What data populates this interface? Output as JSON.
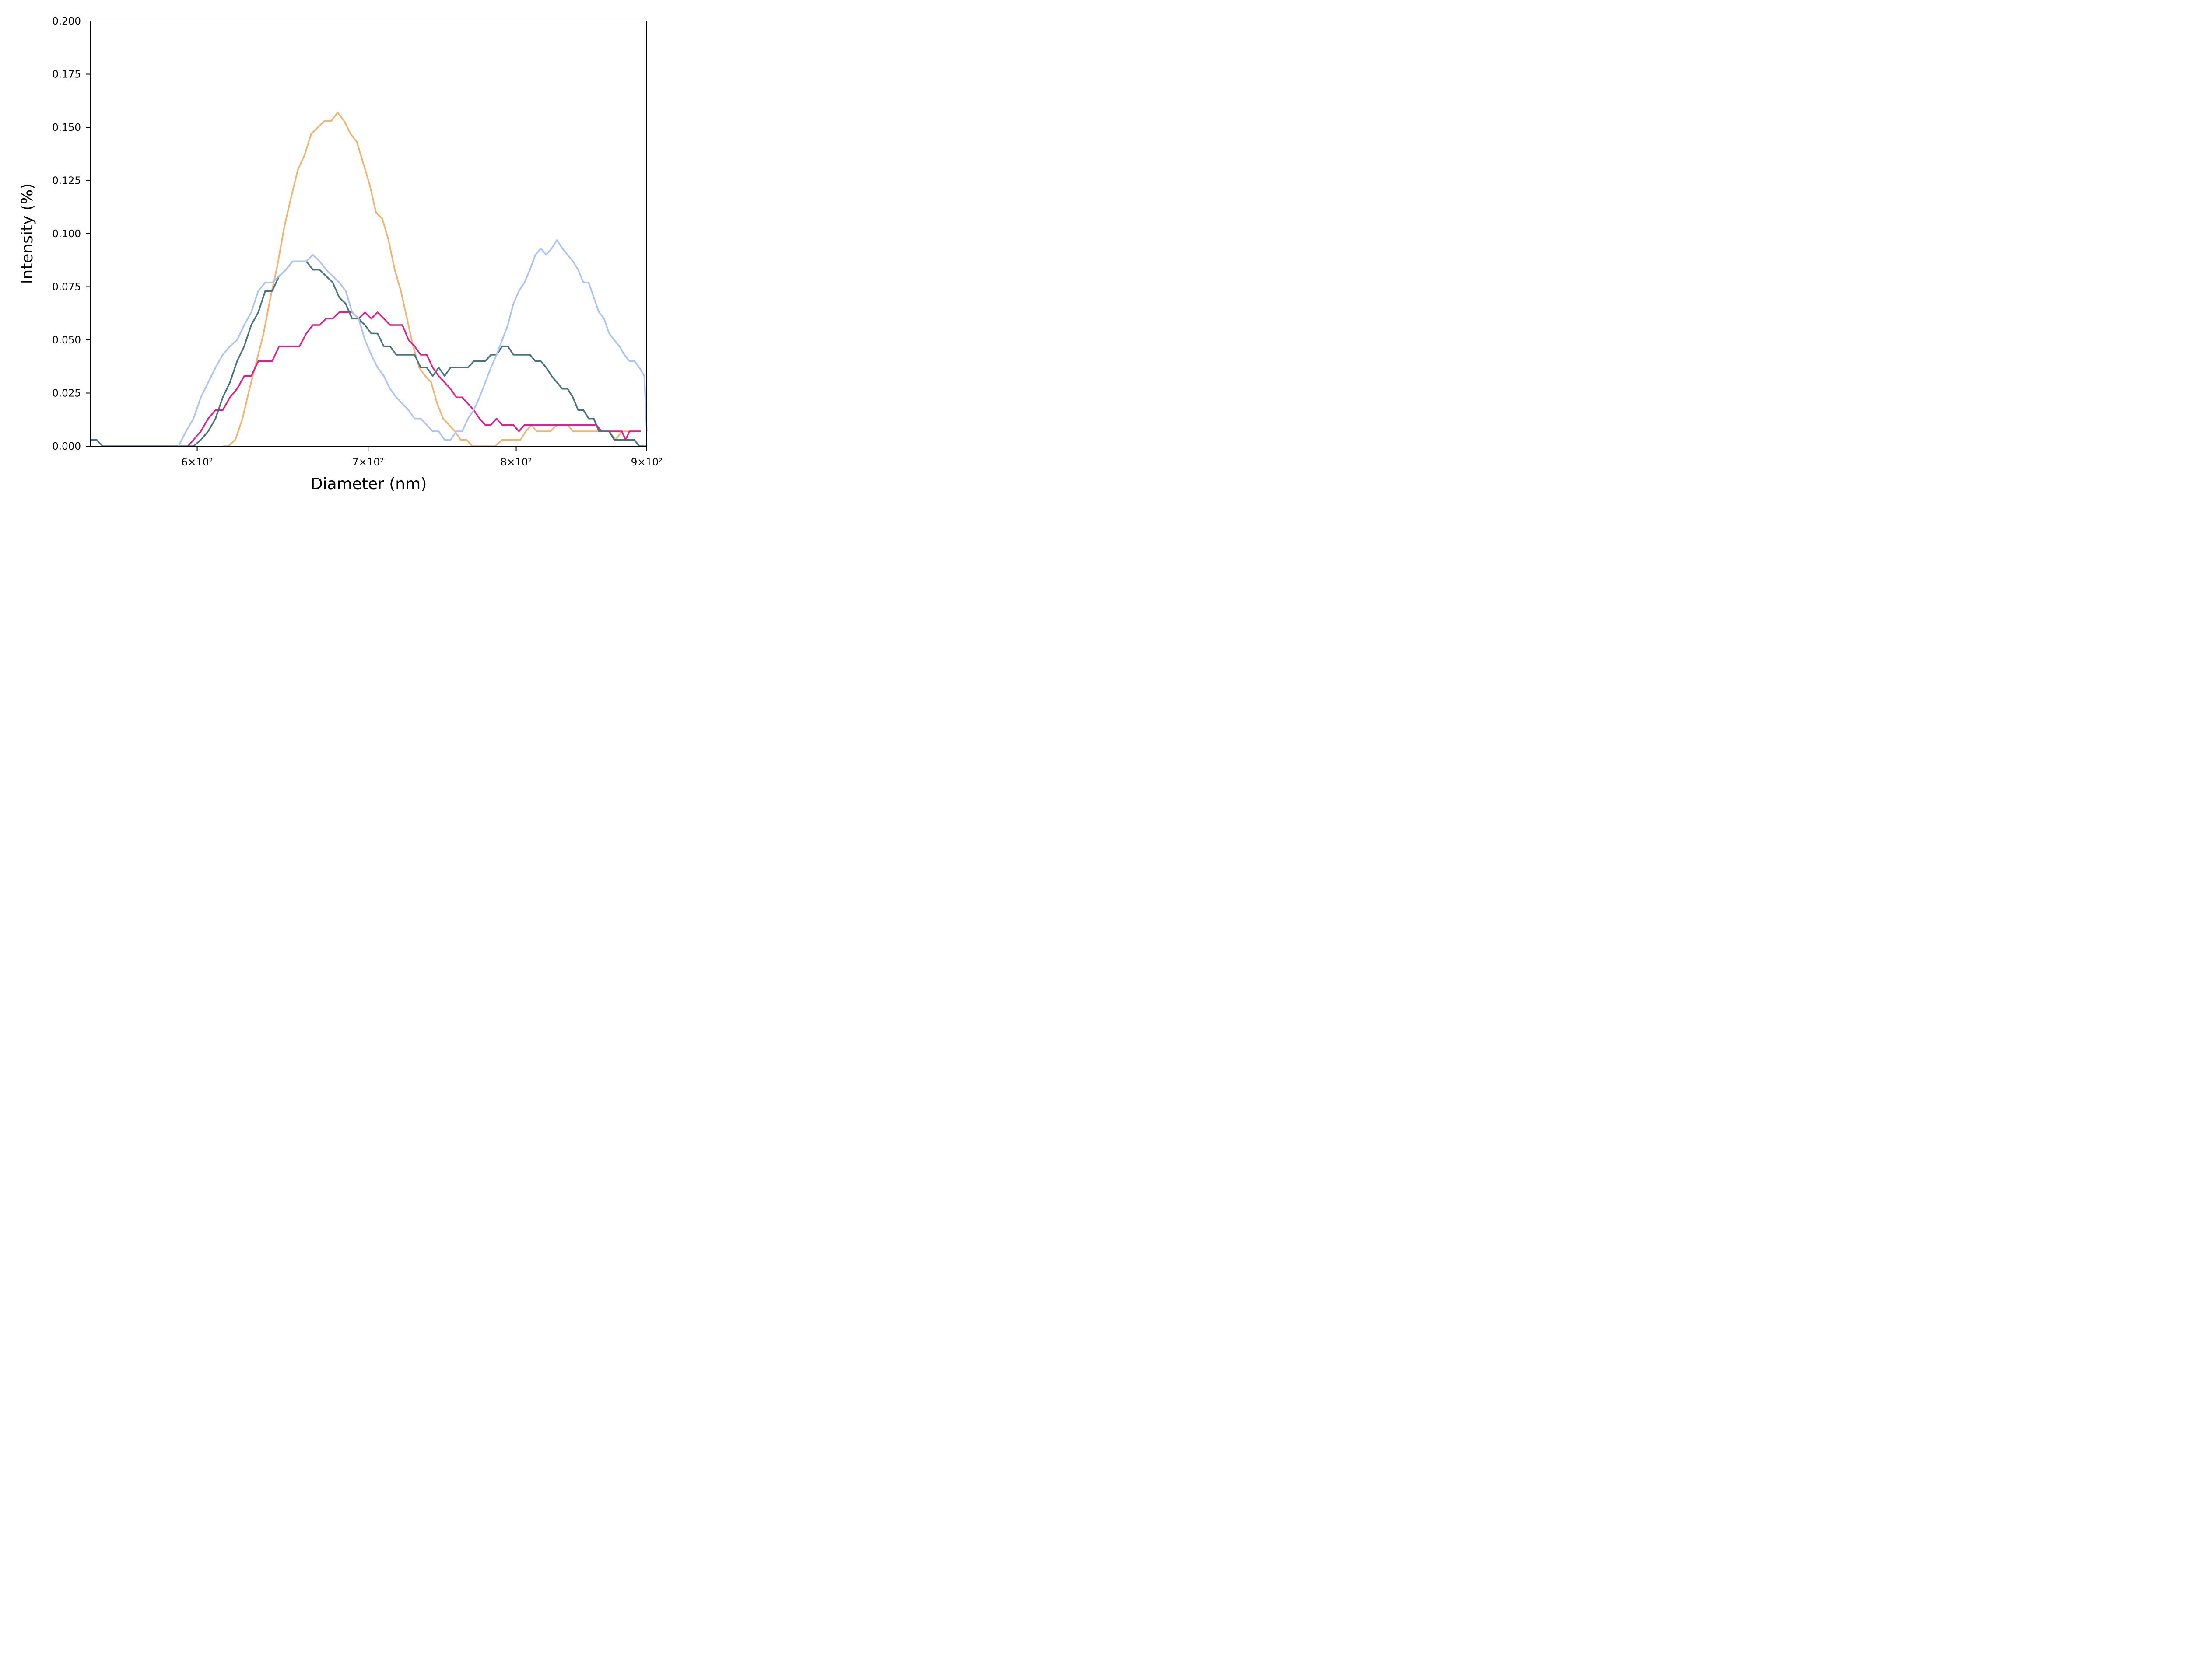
{
  "chart_data": {
    "type": "line",
    "xlabel": "Diameter (nm)",
    "ylabel": "Intensity (%)",
    "x_scale": "log",
    "xlim": [
      545,
      900
    ],
    "ylim": [
      0,
      0.2
    ],
    "grid": false,
    "legend": "none",
    "x_ticks": [
      {
        "value": 600,
        "label": "6×10²"
      },
      {
        "value": 700,
        "label": "7×10²"
      },
      {
        "value": 800,
        "label": "8×10²"
      },
      {
        "value": 900,
        "label": "9×10²"
      }
    ],
    "y_ticks": [
      {
        "value": 0,
        "label": "0.000"
      },
      {
        "value": 0.025,
        "label": "0.025"
      },
      {
        "value": 0.05,
        "label": "0.050"
      },
      {
        "value": 0.075,
        "label": "0.075"
      },
      {
        "value": 0.1,
        "label": "0.100"
      },
      {
        "value": 0.125,
        "label": "0.125"
      },
      {
        "value": 0.15,
        "label": "0.150"
      },
      {
        "value": 0.175,
        "label": "0.175"
      },
      {
        "value": 0.2,
        "label": "0.200"
      }
    ],
    "series": [
      {
        "color": "#f0b470",
        "points": [
          [
            614,
            0
          ],
          [
            617,
            0
          ],
          [
            621,
            0.003
          ],
          [
            625,
            0.013
          ],
          [
            629,
            0.027
          ],
          [
            633,
            0.04
          ],
          [
            637,
            0.053
          ],
          [
            641,
            0.07
          ],
          [
            645,
            0.085
          ],
          [
            649,
            0.103
          ],
          [
            653,
            0.117
          ],
          [
            657,
            0.13
          ],
          [
            661,
            0.137
          ],
          [
            665,
            0.147
          ],
          [
            669,
            0.15
          ],
          [
            673,
            0.153
          ],
          [
            677,
            0.153
          ],
          [
            681,
            0.157
          ],
          [
            685,
            0.153
          ],
          [
            689,
            0.147
          ],
          [
            693,
            0.143
          ],
          [
            697,
            0.133
          ],
          [
            701,
            0.123
          ],
          [
            705,
            0.11
          ],
          [
            709,
            0.107
          ],
          [
            713,
            0.097
          ],
          [
            717,
            0.083
          ],
          [
            721,
            0.073
          ],
          [
            725,
            0.06
          ],
          [
            729,
            0.047
          ],
          [
            733,
            0.037
          ],
          [
            737,
            0.033
          ],
          [
            741,
            0.03
          ],
          [
            745,
            0.02
          ],
          [
            749,
            0.013
          ],
          [
            753,
            0.01
          ],
          [
            757,
            0.007
          ],
          [
            761,
            0.003
          ],
          [
            765,
            0.003
          ],
          [
            769,
            0
          ],
          [
            785,
            0
          ],
          [
            790,
            0.003
          ],
          [
            800,
            0.003
          ],
          [
            803,
            0.003
          ],
          [
            807,
            0.007
          ],
          [
            811,
            0.01
          ],
          [
            815,
            0.007
          ],
          [
            825,
            0.007
          ],
          [
            830,
            0.01
          ],
          [
            838,
            0.01
          ],
          [
            842,
            0.007
          ],
          [
            860,
            0.007
          ],
          [
            863,
            0.007
          ],
          [
            870,
            0.007
          ],
          [
            875,
            0.003
          ],
          [
            880,
            0.007
          ],
          [
            890,
            0.007
          ],
          [
            895,
            0.007
          ]
        ]
      },
      {
        "color": "#e0208e",
        "points": [
          [
            595,
            0
          ],
          [
            598,
            0.003
          ],
          [
            602,
            0.007
          ],
          [
            606,
            0.013
          ],
          [
            610,
            0.017
          ],
          [
            614,
            0.017
          ],
          [
            618,
            0.023
          ],
          [
            622,
            0.027
          ],
          [
            626,
            0.033
          ],
          [
            630,
            0.033
          ],
          [
            634,
            0.04
          ],
          [
            638,
            0.04
          ],
          [
            642,
            0.04
          ],
          [
            646,
            0.047
          ],
          [
            650,
            0.047
          ],
          [
            654,
            0.047
          ],
          [
            658,
            0.047
          ],
          [
            662,
            0.053
          ],
          [
            666,
            0.057
          ],
          [
            670,
            0.057
          ],
          [
            674,
            0.06
          ],
          [
            678,
            0.06
          ],
          [
            682,
            0.063
          ],
          [
            686,
            0.063
          ],
          [
            690,
            0.063
          ],
          [
            694,
            0.06
          ],
          [
            698,
            0.063
          ],
          [
            702,
            0.06
          ],
          [
            706,
            0.063
          ],
          [
            710,
            0.06
          ],
          [
            714,
            0.057
          ],
          [
            718,
            0.057
          ],
          [
            722,
            0.057
          ],
          [
            726,
            0.05
          ],
          [
            730,
            0.047
          ],
          [
            734,
            0.043
          ],
          [
            738,
            0.043
          ],
          [
            742,
            0.037
          ],
          [
            746,
            0.033
          ],
          [
            750,
            0.03
          ],
          [
            754,
            0.027
          ],
          [
            758,
            0.023
          ],
          [
            762,
            0.023
          ],
          [
            766,
            0.02
          ],
          [
            770,
            0.017
          ],
          [
            774,
            0.013
          ],
          [
            778,
            0.01
          ],
          [
            782,
            0.01
          ],
          [
            786,
            0.013
          ],
          [
            790,
            0.01
          ],
          [
            794,
            0.01
          ],
          [
            798,
            0.01
          ],
          [
            802,
            0.007
          ],
          [
            806,
            0.01
          ],
          [
            860,
            0.01
          ],
          [
            864,
            0.007
          ],
          [
            880,
            0.007
          ],
          [
            883,
            0.003
          ],
          [
            886,
            0.007
          ],
          [
            895,
            0.007
          ]
        ]
      },
      {
        "color": "#4a7380",
        "points": [
          [
            545,
            0.003
          ],
          [
            548,
            0.003
          ],
          [
            551,
            0
          ],
          [
            598,
            0
          ],
          [
            602,
            0.003
          ],
          [
            606,
            0.007
          ],
          [
            610,
            0.013
          ],
          [
            614,
            0.023
          ],
          [
            618,
            0.03
          ],
          [
            622,
            0.04
          ],
          [
            626,
            0.047
          ],
          [
            630,
            0.057
          ],
          [
            634,
            0.063
          ],
          [
            638,
            0.073
          ],
          [
            642,
            0.073
          ],
          [
            646,
            0.08
          ],
          [
            650,
            0.083
          ],
          [
            654,
            0.087
          ],
          [
            658,
            0.087
          ],
          [
            662,
            0.087
          ],
          [
            666,
            0.083
          ],
          [
            670,
            0.083
          ],
          [
            674,
            0.08
          ],
          [
            678,
            0.077
          ],
          [
            682,
            0.07
          ],
          [
            686,
            0.067
          ],
          [
            690,
            0.06
          ],
          [
            694,
            0.06
          ],
          [
            698,
            0.057
          ],
          [
            702,
            0.053
          ],
          [
            706,
            0.053
          ],
          [
            710,
            0.047
          ],
          [
            714,
            0.047
          ],
          [
            718,
            0.043
          ],
          [
            722,
            0.043
          ],
          [
            726,
            0.043
          ],
          [
            730,
            0.043
          ],
          [
            734,
            0.037
          ],
          [
            738,
            0.037
          ],
          [
            742,
            0.033
          ],
          [
            746,
            0.037
          ],
          [
            750,
            0.033
          ],
          [
            754,
            0.037
          ],
          [
            758,
            0.037
          ],
          [
            762,
            0.037
          ],
          [
            766,
            0.037
          ],
          [
            770,
            0.04
          ],
          [
            774,
            0.04
          ],
          [
            778,
            0.04
          ],
          [
            782,
            0.043
          ],
          [
            786,
            0.043
          ],
          [
            790,
            0.047
          ],
          [
            794,
            0.047
          ],
          [
            798,
            0.043
          ],
          [
            802,
            0.043
          ],
          [
            806,
            0.043
          ],
          [
            810,
            0.043
          ],
          [
            814,
            0.04
          ],
          [
            818,
            0.04
          ],
          [
            822,
            0.037
          ],
          [
            826,
            0.033
          ],
          [
            830,
            0.03
          ],
          [
            834,
            0.027
          ],
          [
            838,
            0.027
          ],
          [
            842,
            0.023
          ],
          [
            846,
            0.017
          ],
          [
            850,
            0.017
          ],
          [
            854,
            0.013
          ],
          [
            858,
            0.013
          ],
          [
            862,
            0.007
          ],
          [
            866,
            0.007
          ],
          [
            870,
            0.007
          ],
          [
            874,
            0.003
          ],
          [
            878,
            0.003
          ],
          [
            882,
            0.003
          ],
          [
            886,
            0.003
          ],
          [
            890,
            0.003
          ],
          [
            894,
            0
          ],
          [
            900,
            0
          ]
        ]
      },
      {
        "color": "#aac4f5",
        "points": [
          [
            590,
            0
          ],
          [
            594,
            0.007
          ],
          [
            598,
            0.013
          ],
          [
            602,
            0.023
          ],
          [
            606,
            0.03
          ],
          [
            610,
            0.037
          ],
          [
            614,
            0.043
          ],
          [
            618,
            0.047
          ],
          [
            622,
            0.05
          ],
          [
            626,
            0.057
          ],
          [
            630,
            0.063
          ],
          [
            634,
            0.073
          ],
          [
            638,
            0.077
          ],
          [
            642,
            0.077
          ],
          [
            646,
            0.08
          ],
          [
            650,
            0.083
          ],
          [
            654,
            0.087
          ],
          [
            658,
            0.087
          ],
          [
            662,
            0.087
          ],
          [
            666,
            0.09
          ],
          [
            670,
            0.087
          ],
          [
            674,
            0.083
          ],
          [
            678,
            0.08
          ],
          [
            682,
            0.077
          ],
          [
            686,
            0.073
          ],
          [
            690,
            0.063
          ],
          [
            694,
            0.06
          ],
          [
            698,
            0.05
          ],
          [
            702,
            0.043
          ],
          [
            706,
            0.037
          ],
          [
            710,
            0.033
          ],
          [
            714,
            0.027
          ],
          [
            718,
            0.023
          ],
          [
            722,
            0.02
          ],
          [
            726,
            0.017
          ],
          [
            730,
            0.013
          ],
          [
            734,
            0.013
          ],
          [
            738,
            0.01
          ],
          [
            742,
            0.007
          ],
          [
            746,
            0.007
          ],
          [
            750,
            0.003
          ],
          [
            754,
            0.003
          ],
          [
            758,
            0.007
          ],
          [
            762,
            0.007
          ],
          [
            766,
            0.013
          ],
          [
            770,
            0.017
          ],
          [
            774,
            0.023
          ],
          [
            778,
            0.03
          ],
          [
            782,
            0.037
          ],
          [
            786,
            0.043
          ],
          [
            790,
            0.05
          ],
          [
            794,
            0.057
          ],
          [
            798,
            0.067
          ],
          [
            802,
            0.073
          ],
          [
            806,
            0.077
          ],
          [
            810,
            0.083
          ],
          [
            814,
            0.09
          ],
          [
            818,
            0.093
          ],
          [
            822,
            0.09
          ],
          [
            826,
            0.093
          ],
          [
            830,
            0.097
          ],
          [
            834,
            0.093
          ],
          [
            838,
            0.09
          ],
          [
            842,
            0.087
          ],
          [
            846,
            0.083
          ],
          [
            850,
            0.077
          ],
          [
            854,
            0.077
          ],
          [
            858,
            0.07
          ],
          [
            862,
            0.063
          ],
          [
            866,
            0.06
          ],
          [
            870,
            0.053
          ],
          [
            874,
            0.05
          ],
          [
            878,
            0.047
          ],
          [
            882,
            0.043
          ],
          [
            886,
            0.04
          ],
          [
            890,
            0.04
          ],
          [
            894,
            0.037
          ],
          [
            898,
            0.033
          ],
          [
            900,
            0.007
          ]
        ]
      }
    ]
  }
}
